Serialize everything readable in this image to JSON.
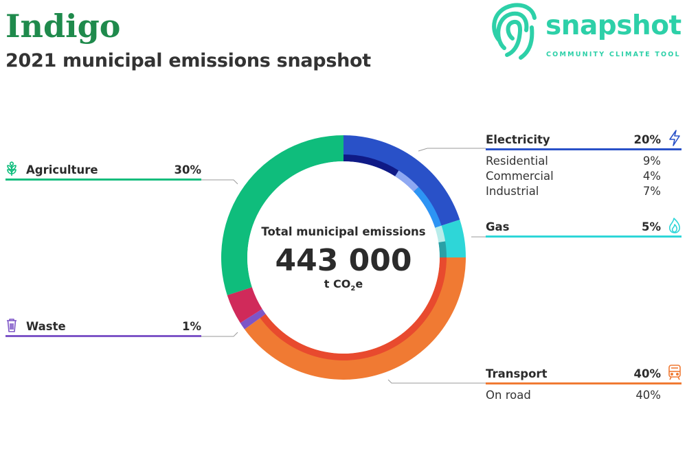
{
  "header": {
    "title": "Indigo",
    "subtitle": "2021 municipal emissions snapshot"
  },
  "logo": {
    "name": "snapshot",
    "tagline": "COMMUNITY CLIMATE TOOL",
    "color": "#2dd0a8"
  },
  "center": {
    "label": "Total municipal emissions",
    "value": "443 000",
    "unit_prefix": "t CO",
    "unit_sub": "2",
    "unit_suffix": "e"
  },
  "colors": {
    "agriculture": "#0fbd7c",
    "waste": "#7d55c7",
    "electricity": "#2951c8",
    "gas": "#2ed6d8",
    "transport": "#f07a33"
  },
  "categories": {
    "agriculture": {
      "label": "Agriculture",
      "pct": "30%",
      "icon": "wheat-icon"
    },
    "waste": {
      "label": "Waste",
      "pct": "1%",
      "icon": "trash-bin-icon"
    },
    "electricity": {
      "label": "Electricity",
      "pct": "20%",
      "icon": "lightning-icon",
      "subs": [
        {
          "label": "Residential",
          "pct": "9%"
        },
        {
          "label": "Commercial",
          "pct": "4%"
        },
        {
          "label": "Industrial",
          "pct": "7%"
        }
      ]
    },
    "gas": {
      "label": "Gas",
      "pct": "5%",
      "icon": "flame-icon"
    },
    "transport": {
      "label": "Transport",
      "pct": "40%",
      "icon": "train-icon",
      "subs": [
        {
          "label": "On road",
          "pct": "40%"
        }
      ]
    }
  },
  "chart_data": {
    "type": "pie",
    "total": 443000,
    "unit": "t CO2e",
    "series": [
      {
        "name": "Electricity",
        "value": 20,
        "color": "#2951c8",
        "subs": [
          {
            "name": "Residential",
            "value": 9,
            "color": "#0f1a86"
          },
          {
            "name": "Commercial",
            "value": 4,
            "color": "#8ea8f2"
          },
          {
            "name": "Industrial",
            "value": 7,
            "color": "#2d94f4"
          }
        ]
      },
      {
        "name": "Gas",
        "value": 5,
        "color": "#2ed6d8",
        "subs": [
          {
            "name": "",
            "value": 2.5,
            "color": "#b8ecea"
          },
          {
            "name": "",
            "value": 2.5,
            "color": "#2aa0a6"
          }
        ]
      },
      {
        "name": "Transport",
        "value": 40,
        "color": "#f07a33",
        "subs": [
          {
            "name": "On road",
            "value": 40,
            "color": "#e84a2e"
          }
        ]
      },
      {
        "name": "Waste",
        "value": 1,
        "color": "#7d55c7",
        "subs": []
      },
      {
        "name": "",
        "value": 4,
        "color": "#d02a5a",
        "subs": []
      },
      {
        "name": "Agriculture",
        "value": 30,
        "color": "#0fbd7c",
        "subs": []
      }
    ]
  }
}
